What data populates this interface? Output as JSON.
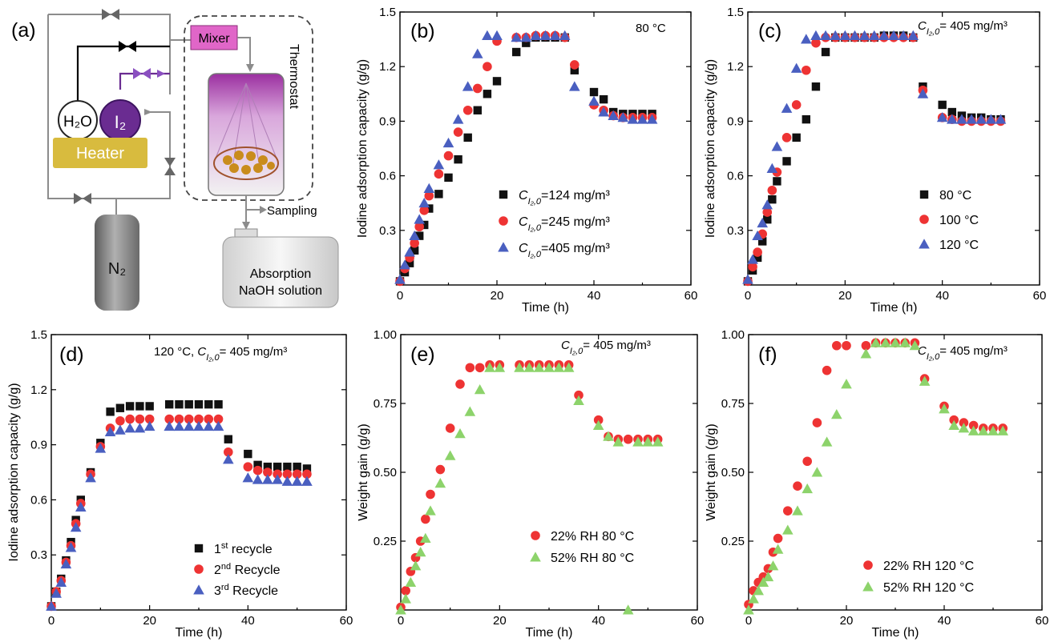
{
  "colors": {
    "black": "#111111",
    "red": "#ee3333",
    "blue": "#4a5fc0",
    "green": "#8dd36b",
    "magenta": "#e066c8",
    "purple": "#6a2c91",
    "heater": "#d8bb3e",
    "gray": "#8c8c8c"
  },
  "schematic": {
    "panel_letter": "(a)",
    "mixer_label": "Mixer",
    "thermostat_label": "Thermostat",
    "h2o_label": "H₂O",
    "i2_label": "I₂",
    "heater_label": "Heater",
    "n2_label": "N₂",
    "sampling_label": "Sampling",
    "absorption_line1": "Absorption",
    "absorption_line2": "NaOH solution"
  },
  "chart_data": [
    {
      "id": "b",
      "panel_letter": "(b)",
      "type": "scatter",
      "annotation": "80 °C",
      "xlabel": "Time (h)",
      "ylabel": "Iodine adsorption capacity (g/g)",
      "xlim": [
        0,
        60
      ],
      "ylim": [
        0,
        1.5
      ],
      "xticks": [
        "0",
        "20",
        "40",
        "60"
      ],
      "yticks": [
        "0.3",
        "0.6",
        "0.9",
        "1.2",
        "1.5"
      ],
      "ytick_values": [
        0.3,
        0.6,
        0.9,
        1.2,
        1.5
      ],
      "legend_position": "lower-right",
      "series": [
        {
          "name": "C_I2,0=124 mg/m³",
          "legend_main": "C",
          "legend_sub": "I₂,0",
          "legend_rest": "=124 mg/m³",
          "marker": "square",
          "color": "#111111",
          "x": [
            0,
            1,
            2,
            3,
            4,
            5,
            6,
            8,
            10,
            12,
            14,
            16,
            18,
            20,
            24,
            26,
            28,
            30,
            32,
            34,
            36,
            40,
            42,
            44,
            46,
            48,
            50,
            52
          ],
          "y": [
            0.02,
            0.07,
            0.12,
            0.19,
            0.27,
            0.33,
            0.42,
            0.5,
            0.59,
            0.69,
            0.81,
            0.96,
            1.05,
            1.12,
            1.28,
            1.33,
            1.36,
            1.36,
            1.36,
            1.36,
            1.18,
            1.06,
            1.02,
            0.95,
            0.94,
            0.94,
            0.94,
            0.94
          ]
        },
        {
          "name": "C_I2,0=245 mg/m³",
          "legend_main": "C",
          "legend_sub": "I₂,0",
          "legend_rest": "=245 mg/m³",
          "marker": "circle",
          "color": "#ee3333",
          "x": [
            0,
            1,
            2,
            3,
            4,
            5,
            6,
            8,
            10,
            12,
            14,
            16,
            18,
            20,
            24,
            26,
            28,
            30,
            32,
            34,
            36,
            40,
            42,
            44,
            46,
            48,
            50,
            52
          ],
          "y": [
            0.02,
            0.09,
            0.15,
            0.23,
            0.32,
            0.41,
            0.49,
            0.61,
            0.71,
            0.84,
            0.96,
            1.08,
            1.2,
            1.34,
            1.36,
            1.36,
            1.37,
            1.37,
            1.37,
            1.36,
            1.21,
            0.99,
            0.96,
            0.93,
            0.92,
            0.92,
            0.92,
            0.92
          ]
        },
        {
          "name": "C_I2,0=405 mg/m³",
          "legend_main": "C",
          "legend_sub": "I₂,0",
          "legend_rest": "=405 mg/m³",
          "marker": "triangle",
          "color": "#4a5fc0",
          "x": [
            0,
            1,
            2,
            3,
            4,
            5,
            6,
            8,
            10,
            12,
            14,
            16,
            18,
            20,
            24,
            26,
            28,
            30,
            32,
            34,
            36,
            40,
            42,
            44,
            46,
            48,
            50,
            52
          ],
          "y": [
            0.03,
            0.11,
            0.18,
            0.27,
            0.36,
            0.45,
            0.53,
            0.66,
            0.78,
            0.91,
            1.09,
            1.27,
            1.37,
            1.37,
            1.36,
            1.36,
            1.37,
            1.37,
            1.37,
            1.37,
            1.09,
            1.01,
            0.95,
            0.93,
            0.92,
            0.91,
            0.91,
            0.91
          ]
        }
      ]
    },
    {
      "id": "c",
      "panel_letter": "(c)",
      "type": "scatter",
      "annotation_main": "C",
      "annotation_sub": "I₂,0",
      "annotation_rest": "= 405 mg/m³",
      "xlabel": "Time (h)",
      "ylabel": "Iodine adsorption capacity (g/g)",
      "xlim": [
        0,
        60
      ],
      "ylim": [
        0,
        1.5
      ],
      "xticks": [
        "0",
        "20",
        "40",
        "60"
      ],
      "yticks": [
        "0.3",
        "0.6",
        "0.9",
        "1.2",
        "1.5"
      ],
      "ytick_values": [
        0.3,
        0.6,
        0.9,
        1.2,
        1.5
      ],
      "legend_position": "lower-right",
      "series": [
        {
          "name": "80 °C",
          "marker": "square",
          "color": "#111111",
          "x": [
            0,
            1,
            2,
            3,
            4,
            5,
            6,
            8,
            10,
            12,
            14,
            16,
            18,
            20,
            22,
            24,
            26,
            28,
            30,
            32,
            34,
            36,
            40,
            42,
            44,
            46,
            48,
            50,
            52
          ],
          "y": [
            0.02,
            0.08,
            0.15,
            0.24,
            0.36,
            0.47,
            0.57,
            0.68,
            0.81,
            0.91,
            1.09,
            1.28,
            1.36,
            1.36,
            1.36,
            1.36,
            1.36,
            1.37,
            1.37,
            1.37,
            1.36,
            1.09,
            0.99,
            0.95,
            0.93,
            0.92,
            0.92,
            0.91,
            0.91
          ]
        },
        {
          "name": "100 °C",
          "marker": "circle",
          "color": "#ee3333",
          "x": [
            0,
            1,
            2,
            3,
            4,
            5,
            6,
            8,
            10,
            12,
            14,
            16,
            18,
            20,
            22,
            24,
            26,
            28,
            30,
            32,
            34,
            36,
            40,
            42,
            44,
            46,
            48,
            50,
            52
          ],
          "y": [
            0.02,
            0.1,
            0.18,
            0.28,
            0.4,
            0.52,
            0.62,
            0.81,
            0.99,
            1.18,
            1.33,
            1.36,
            1.36,
            1.36,
            1.36,
            1.36,
            1.36,
            1.36,
            1.36,
            1.36,
            1.36,
            1.07,
            0.92,
            0.91,
            0.9,
            0.9,
            0.9,
            0.9,
            0.9
          ]
        },
        {
          "name": "120 °C",
          "marker": "triangle",
          "color": "#4a5fc0",
          "x": [
            0,
            1,
            2,
            3,
            4,
            5,
            6,
            8,
            10,
            12,
            14,
            16,
            18,
            20,
            22,
            24,
            26,
            28,
            30,
            32,
            34,
            36,
            40,
            42,
            44,
            46,
            48,
            50,
            52
          ],
          "y": [
            0.03,
            0.14,
            0.27,
            0.34,
            0.44,
            0.64,
            0.76,
            0.97,
            1.19,
            1.35,
            1.37,
            1.37,
            1.37,
            1.37,
            1.37,
            1.37,
            1.37,
            1.37,
            1.37,
            1.37,
            1.37,
            1.05,
            0.92,
            0.91,
            0.91,
            0.91,
            0.91,
            0.91,
            0.91
          ]
        }
      ]
    },
    {
      "id": "d",
      "panel_letter": "(d)",
      "type": "scatter",
      "annotation_pre": "120 °C, ",
      "annotation_main": "C",
      "annotation_sub": "I₂,0",
      "annotation_rest": "= 405 mg/m³",
      "xlabel": "Time (h)",
      "ylabel": "Iodine adsorption capacity (g/g)",
      "xlim": [
        0,
        60
      ],
      "ylim": [
        0,
        1.5
      ],
      "xticks": [
        "0",
        "20",
        "40",
        "60"
      ],
      "yticks": [
        "0.3",
        "0.6",
        "0.9",
        "1.2",
        "1.5"
      ],
      "ytick_values": [
        0.3,
        0.6,
        0.9,
        1.2,
        1.5
      ],
      "legend_position": "lower-right",
      "series": [
        {
          "name": "1st recycle",
          "legend_main": "1",
          "legend_sup": "st",
          "legend_rest": " recycle",
          "marker": "square",
          "color": "#111111",
          "x": [
            0,
            1,
            2,
            3,
            4,
            5,
            6,
            8,
            10,
            12,
            14,
            16,
            18,
            20,
            24,
            26,
            28,
            30,
            32,
            34,
            36,
            40,
            42,
            44,
            46,
            48,
            50,
            52
          ],
          "y": [
            0.02,
            0.1,
            0.17,
            0.27,
            0.37,
            0.49,
            0.6,
            0.75,
            0.91,
            1.08,
            1.1,
            1.11,
            1.11,
            1.11,
            1.12,
            1.12,
            1.12,
            1.12,
            1.12,
            1.12,
            0.93,
            0.85,
            0.79,
            0.78,
            0.78,
            0.78,
            0.78,
            0.77
          ]
        },
        {
          "name": "2nd Recycle",
          "legend_main": "2",
          "legend_sup": "nd",
          "legend_rest": " Recycle",
          "marker": "circle",
          "color": "#ee3333",
          "x": [
            0,
            1,
            2,
            3,
            4,
            5,
            6,
            8,
            10,
            12,
            14,
            16,
            18,
            20,
            24,
            26,
            28,
            30,
            32,
            34,
            36,
            40,
            42,
            44,
            46,
            48,
            50,
            52
          ],
          "y": [
            0.02,
            0.1,
            0.16,
            0.26,
            0.35,
            0.47,
            0.58,
            0.74,
            0.89,
            0.99,
            1.03,
            1.04,
            1.04,
            1.04,
            1.04,
            1.04,
            1.04,
            1.04,
            1.04,
            1.04,
            0.86,
            0.78,
            0.76,
            0.75,
            0.74,
            0.74,
            0.74,
            0.74
          ]
        },
        {
          "name": "3rd Recycle",
          "legend_main": "3",
          "legend_sup": "rd",
          "legend_rest": " Recycle",
          "marker": "triangle",
          "color": "#4a5fc0",
          "x": [
            0,
            1,
            2,
            3,
            4,
            5,
            6,
            8,
            10,
            12,
            14,
            16,
            18,
            20,
            24,
            26,
            28,
            30,
            32,
            34,
            36,
            40,
            42,
            44,
            46,
            48,
            50,
            52
          ],
          "y": [
            0.02,
            0.09,
            0.15,
            0.25,
            0.34,
            0.45,
            0.56,
            0.72,
            0.88,
            0.97,
            0.98,
            0.99,
            0.99,
            1.0,
            1.0,
            1.0,
            1.0,
            1.0,
            1.0,
            1.0,
            0.82,
            0.72,
            0.71,
            0.71,
            0.71,
            0.7,
            0.7,
            0.7
          ]
        }
      ]
    },
    {
      "id": "e",
      "panel_letter": "(e)",
      "type": "scatter",
      "annotation_main": "C",
      "annotation_sub": "I₂,0",
      "annotation_rest": "= 405 mg/m³",
      "xlabel": "Time (h)",
      "ylabel": "Weight gain (g/g)",
      "xlim": [
        0,
        60
      ],
      "ylim": [
        0,
        1.0
      ],
      "xticks": [
        "0",
        "20",
        "40",
        "60"
      ],
      "yticks": [
        "0.25",
        "0.50",
        "0.75",
        "1.00"
      ],
      "ytick_values": [
        0.25,
        0.5,
        0.75,
        1.0
      ],
      "legend_position": "lower-right",
      "series": [
        {
          "name": "22% RH 80 °C",
          "marker": "circle",
          "color": "#ee3333",
          "x": [
            0,
            1,
            2,
            3,
            4,
            5,
            6,
            8,
            10,
            12,
            14,
            16,
            18,
            20,
            24,
            26,
            28,
            30,
            32,
            34,
            36,
            40,
            42,
            44,
            46,
            48,
            50,
            52
          ],
          "y": [
            0.01,
            0.07,
            0.14,
            0.19,
            0.25,
            0.33,
            0.42,
            0.51,
            0.66,
            0.82,
            0.88,
            0.88,
            0.89,
            0.89,
            0.89,
            0.89,
            0.89,
            0.89,
            0.89,
            0.89,
            0.78,
            0.69,
            0.63,
            0.62,
            0.62,
            0.62,
            0.62,
            0.62
          ]
        },
        {
          "name": "52% RH 80 °C",
          "marker": "triangle",
          "color": "#8dd36b",
          "x": [
            0,
            1,
            2,
            3,
            4,
            5,
            6,
            8,
            10,
            12,
            14,
            16,
            18,
            20,
            24,
            26,
            28,
            30,
            32,
            34,
            36,
            40,
            42,
            44,
            46,
            48,
            50,
            52
          ],
          "y": [
            0.0,
            0.04,
            0.1,
            0.16,
            0.21,
            0.26,
            0.36,
            0.46,
            0.56,
            0.64,
            0.72,
            0.8,
            0.88,
            0.88,
            0.88,
            0.88,
            0.88,
            0.88,
            0.88,
            0.88,
            0.76,
            0.67,
            0.63,
            0.61,
            0.0,
            0.61,
            0.61,
            0.61
          ]
        }
      ]
    },
    {
      "id": "f",
      "panel_letter": "(f)",
      "type": "scatter",
      "annotation_main": "C",
      "annotation_sub": "I₂,0",
      "annotation_rest": "= 405 mg/m³",
      "xlabel": "Time (h)",
      "ylabel": "Weight gain (g/g)",
      "xlim": [
        0,
        60
      ],
      "ylim": [
        0,
        1.0
      ],
      "xticks": [
        "0",
        "20",
        "40",
        "60"
      ],
      "yticks": [
        "0.25",
        "0.50",
        "0.75",
        "1.00"
      ],
      "ytick_values": [
        0.25,
        0.5,
        0.75,
        1.0
      ],
      "legend_position": "lower-right",
      "series": [
        {
          "name": "22% RH 120 °C",
          "marker": "circle",
          "color": "#ee3333",
          "x": [
            0,
            1,
            2,
            3,
            4,
            5,
            6,
            8,
            10,
            12,
            14,
            16,
            18,
            20,
            24,
            26,
            28,
            30,
            32,
            34,
            36,
            40,
            42,
            44,
            46,
            48,
            50,
            52
          ],
          "y": [
            0.02,
            0.07,
            0.1,
            0.12,
            0.15,
            0.21,
            0.26,
            0.36,
            0.45,
            0.54,
            0.68,
            0.87,
            0.96,
            0.96,
            0.96,
            0.97,
            0.97,
            0.97,
            0.97,
            0.97,
            0.84,
            0.74,
            0.69,
            0.68,
            0.67,
            0.66,
            0.66,
            0.66
          ]
        },
        {
          "name": "52% RH 120 °C",
          "marker": "triangle",
          "color": "#8dd36b",
          "x": [
            0,
            1,
            2,
            3,
            4,
            5,
            6,
            8,
            10,
            12,
            14,
            16,
            18,
            20,
            24,
            26,
            28,
            30,
            32,
            34,
            36,
            40,
            42,
            44,
            46,
            48,
            50,
            52
          ],
          "y": [
            0.0,
            0.04,
            0.07,
            0.1,
            0.12,
            0.16,
            0.22,
            0.29,
            0.36,
            0.44,
            0.5,
            0.61,
            0.71,
            0.82,
            0.93,
            0.97,
            0.97,
            0.97,
            0.97,
            0.96,
            0.83,
            0.73,
            0.67,
            0.66,
            0.65,
            0.65,
            0.65,
            0.65
          ]
        }
      ]
    }
  ]
}
